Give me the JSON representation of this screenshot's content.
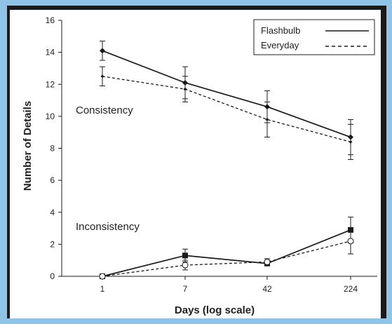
{
  "chart_data": {
    "type": "line",
    "xlabel": "Days (log scale)",
    "ylabel": "Number of Details",
    "x_categories": [
      "1",
      "7",
      "42",
      "224"
    ],
    "ylim": [
      0,
      16
    ],
    "yticks": [
      "0",
      "2",
      "4",
      "6",
      "8",
      "10",
      "12",
      "14",
      "16"
    ],
    "grid": false,
    "legend_position": "top-right",
    "annotations": [
      "Consistency",
      "Inconsistency"
    ],
    "series": [
      {
        "name": "Flashbulb",
        "group": "Consistency",
        "style": "solid",
        "marker": "diamond-filled",
        "values": [
          14.1,
          12.1,
          10.6,
          8.7
        ],
        "error": [
          0.6,
          1.0,
          1.0,
          1.1
        ]
      },
      {
        "name": "Everyday",
        "group": "Consistency",
        "style": "dashed",
        "marker": "diamond-small",
        "values": [
          12.5,
          11.7,
          9.8,
          8.4
        ],
        "error": [
          0.6,
          0.8,
          1.1,
          1.1
        ]
      },
      {
        "name": "Flashbulb",
        "group": "Inconsistency",
        "style": "solid",
        "marker": "square-filled",
        "values": [
          0.0,
          1.3,
          0.8,
          2.9
        ],
        "error": [
          0.0,
          0.4,
          0.1,
          0.8
        ]
      },
      {
        "name": "Everyday",
        "group": "Inconsistency",
        "style": "dashed",
        "marker": "circle-open",
        "values": [
          0.0,
          0.7,
          0.9,
          2.2
        ],
        "error": [
          0.0,
          0.3,
          0.2,
          0.8
        ]
      }
    ],
    "legend": [
      {
        "name": "Flashbulb",
        "style": "solid"
      },
      {
        "name": "Everyday",
        "style": "dashed"
      }
    ],
    "colors": {
      "line": "#1a1a1a",
      "background": "#ffffff",
      "page": "#8fc4e6",
      "frame": "#1a1a1a"
    }
  }
}
